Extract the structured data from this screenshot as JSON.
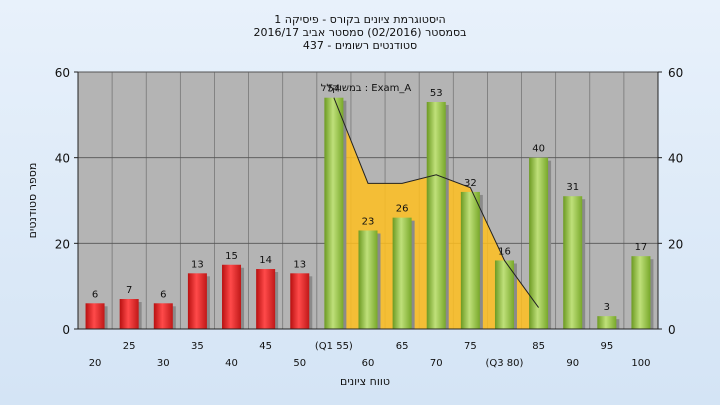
{
  "titles": [
    "היסטוגרמת ציונים בקורס - פיסיקה 1",
    "בסמסטר  (02/2016)  סמסטר אביב 2016/17",
    "סטודנטים רשומים - 437"
  ],
  "chart_data": {
    "type": "bar",
    "categories": [
      "20",
      "25",
      "30",
      "35",
      "40",
      "45",
      "50",
      "55",
      "60",
      "65",
      "70",
      "75",
      "80",
      "85",
      "90",
      "95",
      "100"
    ],
    "x_tick_labels": [
      "20",
      "25",
      "30",
      "35",
      "40",
      "45",
      "50",
      "(Q1 55)",
      "60",
      "65",
      "70",
      "75",
      "(Q3 80)",
      "85",
      "90",
      "95",
      "100"
    ],
    "values": [
      6,
      7,
      6,
      13,
      15,
      14,
      13,
      54,
      23,
      26,
      53,
      32,
      16,
      40,
      31,
      3,
      17
    ],
    "data_labels": [
      "6",
      "7",
      "6",
      "13",
      "15",
      "14",
      "13",
      "54",
      "23",
      "26",
      "53",
      "32",
      "16",
      "40",
      "31",
      "3",
      "17"
    ],
    "bar_colors": [
      "#e02020",
      "#e02020",
      "#e02020",
      "#e02020",
      "#e02020",
      "#e02020",
      "#e02020",
      "#8fc23c",
      "#8fc23c",
      "#8fc23c",
      "#8fc23c",
      "#8fc23c",
      "#8fc23c",
      "#8fc23c",
      "#8fc23c",
      "#8fc23c",
      "#8fc23c"
    ],
    "ylim": [
      0,
      60
    ],
    "yticks": [
      "0",
      "20",
      "40",
      "60"
    ],
    "xlabel": "טווח ציונים",
    "ylabel": "מספר סטודנטים",
    "annotation": "במשוקלל : Exam_A",
    "distribution_curve": {
      "name": "Exam_A",
      "x": [
        "55",
        "60",
        "65",
        "70",
        "75",
        "80",
        "85"
      ],
      "values": [
        54,
        34,
        34,
        36,
        33,
        16,
        5
      ],
      "color": "#ffc020"
    },
    "grid": true
  }
}
